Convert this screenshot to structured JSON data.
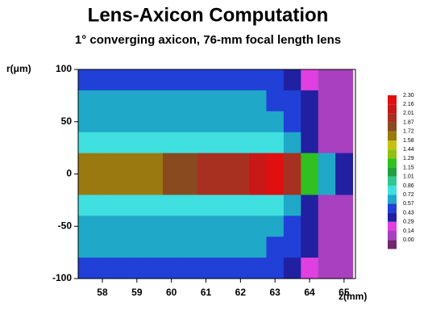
{
  "chart_data": {
    "type": "heatmap",
    "title": "Lens-Axicon Computation",
    "subtitle": "1° converging axicon, 76-mm focal length lens",
    "y_label": "r(μm)",
    "x_label": "z(mm)",
    "xlim": [
      57.3,
      65.33
    ],
    "ylim": [
      -100,
      100
    ],
    "xticks": [
      58,
      59,
      60,
      61,
      62,
      63,
      64,
      65
    ],
    "yticks": [
      100,
      50,
      0,
      -50,
      -100
    ],
    "x": [
      57.5,
      58,
      58.5,
      59,
      59.5,
      60,
      60.5,
      61,
      61.5,
      62,
      62.5,
      63,
      63.5,
      64,
      64.5,
      65
    ],
    "y": [
      90,
      70,
      50,
      30,
      10,
      -10,
      -30,
      -50,
      -70,
      -90
    ],
    "z": [
      [
        0.5,
        0.5,
        0.55,
        0.5,
        0.5,
        0.55,
        0.5,
        0.5,
        0.55,
        0.5,
        0.5,
        0.5,
        0.4,
        0.2,
        0,
        0
      ],
      [
        0.6,
        0.6,
        0.6,
        0.6,
        0.6,
        0.6,
        0.6,
        0.6,
        0.6,
        0.6,
        0.6,
        0.55,
        0.45,
        0.3,
        0,
        0
      ],
      [
        0.7,
        0.7,
        0.7,
        0.7,
        0.7,
        0.7,
        0.7,
        0.7,
        0.7,
        0.7,
        0.7,
        0.65,
        0.5,
        0.3,
        0.05,
        0
      ],
      [
        0.8,
        0.8,
        0.8,
        0.8,
        0.8,
        0.8,
        0.8,
        0.8,
        0.8,
        0.8,
        0.8,
        0.75,
        0.6,
        0.4,
        0.1,
        0
      ],
      [
        1.6,
        1.6,
        1.7,
        1.7,
        1.7,
        1.8,
        1.8,
        1.9,
        1.9,
        2.0,
        2.1,
        2.2,
        1.9,
        1.2,
        0.6,
        0.4
      ],
      [
        1.6,
        1.6,
        1.7,
        1.7,
        1.7,
        1.8,
        1.8,
        1.9,
        1.9,
        2.0,
        2.1,
        2.2,
        1.9,
        1.2,
        0.6,
        0.4
      ],
      [
        0.8,
        0.8,
        0.8,
        0.8,
        0.8,
        0.8,
        0.8,
        0.8,
        0.8,
        0.8,
        0.8,
        0.75,
        0.6,
        0.4,
        0.1,
        0
      ],
      [
        0.7,
        0.7,
        0.7,
        0.7,
        0.7,
        0.7,
        0.7,
        0.7,
        0.7,
        0.7,
        0.7,
        0.65,
        0.5,
        0.3,
        0.05,
        0
      ],
      [
        0.6,
        0.6,
        0.6,
        0.6,
        0.6,
        0.6,
        0.6,
        0.6,
        0.6,
        0.6,
        0.6,
        0.55,
        0.45,
        0.3,
        0,
        0
      ],
      [
        0.5,
        0.5,
        0.55,
        0.5,
        0.5,
        0.55,
        0.5,
        0.5,
        0.55,
        0.5,
        0.5,
        0.5,
        0.4,
        0.2,
        0,
        0
      ]
    ],
    "levels": [
      {
        "value": 2.3,
        "label": "2.30"
      },
      2.16,
      2.01,
      1.87,
      1.72,
      1.58,
      1.44,
      1.29,
      1.15,
      1.01,
      0.86,
      0.72,
      0.57,
      0.43,
      0.29,
      0.14,
      {
        "value": 0,
        "label": "0.00"
      }
    ],
    "colors": [
      "#e01010",
      "#c81818",
      "#a83020",
      "#8a4a20",
      "#9a7a10",
      "#c8c010",
      "#90c010",
      "#30c020",
      "#20a040",
      "#30c890",
      "#40e0e0",
      "#20a8c8",
      "#2040d8",
      "#2020a0",
      "#e040e0",
      "#a840c0",
      "#702870"
    ]
  }
}
